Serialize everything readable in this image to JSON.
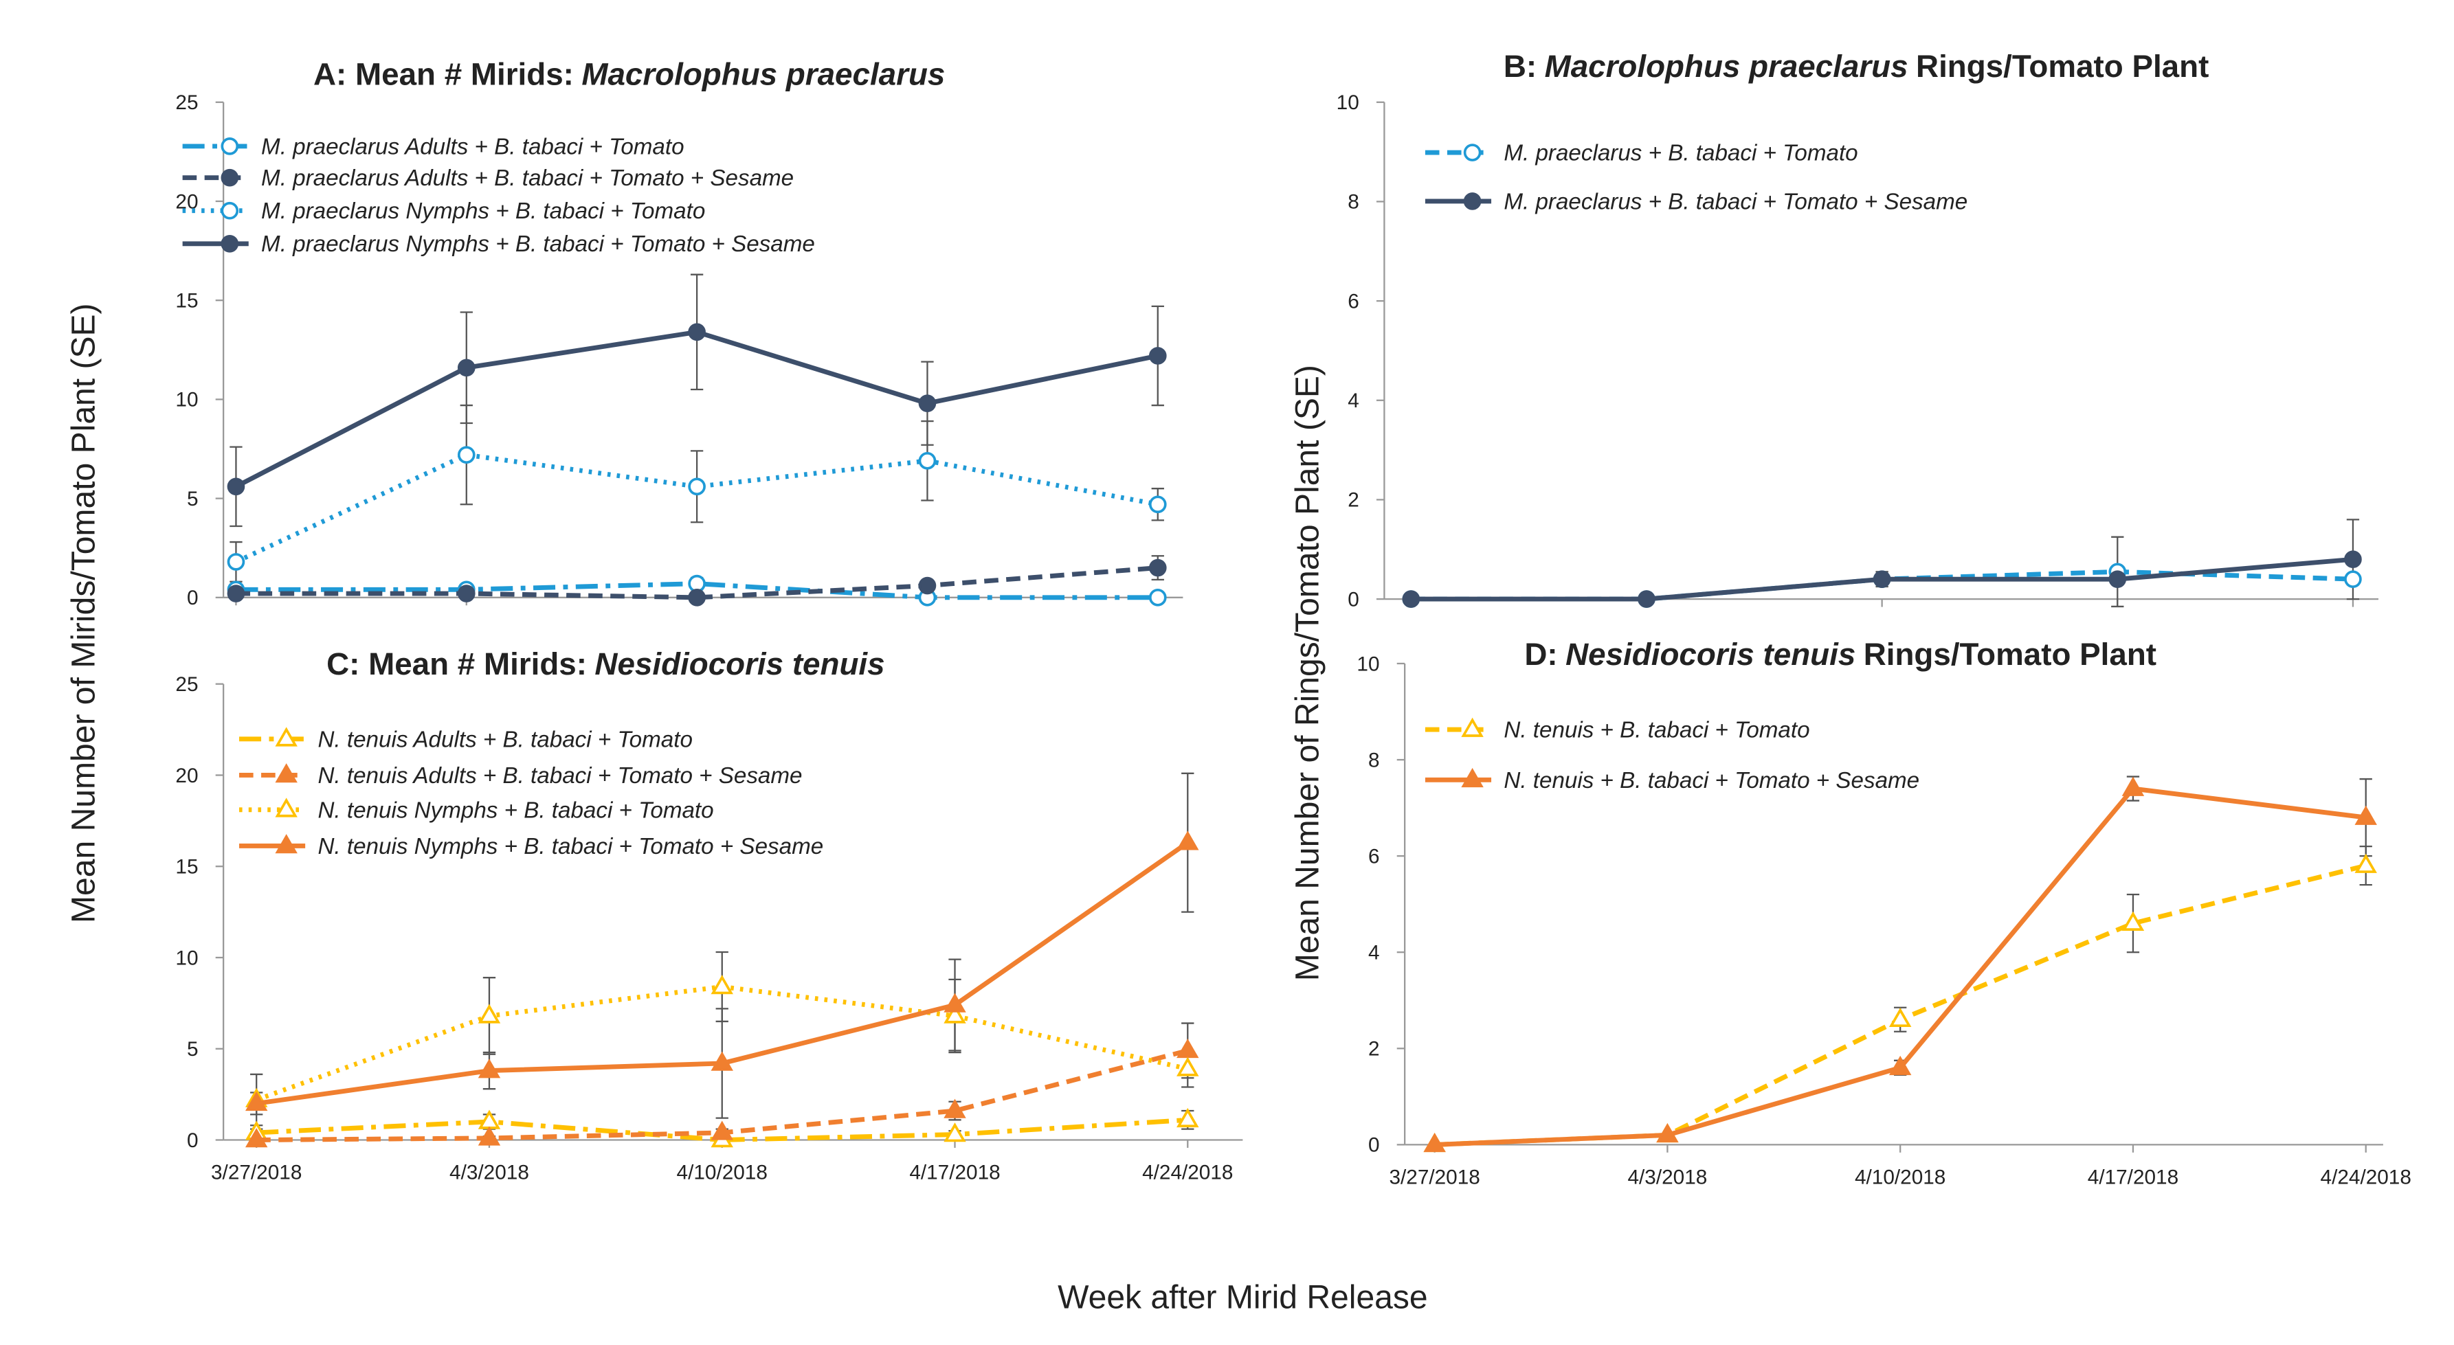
{
  "xlabel": "Week after Mirid Release",
  "ylabels": [
    "Mean Number of Mirids/Tomato Plant (SE)",
    "Mean Number of Rings/Tomato Plant (SE)"
  ],
  "chart_data": [
    {
      "type": "line",
      "title_parts": [
        {
          "text": "A: Mean # Mirids:",
          "italic": false
        },
        {
          "text": "Macrolophus praeclarus",
          "italic": true
        }
      ],
      "categories": [
        null,
        null,
        null,
        null,
        null
      ],
      "ylim": [
        0,
        25
      ],
      "yticks": [
        0,
        5,
        10,
        15,
        20,
        25
      ],
      "series": [
        {
          "name": "M. praeclarus  Adults + B. tabaci + Tomato",
          "color": "#1f9ad6",
          "dash": "dashdot",
          "marker": "circle",
          "filled": false,
          "values": [
            0.4,
            0.4,
            0.7,
            0,
            0
          ],
          "errors": [
            0.1,
            0.1,
            0.3,
            0,
            0
          ]
        },
        {
          "name": "M. praeclarus Adults + B. tabaci + Tomato + Sesame",
          "color": "#3d4f6b",
          "dash": "dash",
          "marker": "circle",
          "filled": true,
          "values": [
            0.2,
            0.2,
            0,
            0.6,
            1.5
          ],
          "errors": [
            0.1,
            0.2,
            0,
            0.2,
            0.6
          ]
        },
        {
          "name": "M. praeclarus Nymphs + B. tabaci + Tomato",
          "color": "#1f9ad6",
          "dash": "dot",
          "marker": "circle",
          "filled": false,
          "values": [
            1.8,
            7.2,
            5.6,
            6.9,
            4.7
          ],
          "errors": [
            1.0,
            2.5,
            1.8,
            2.0,
            0.8
          ]
        },
        {
          "name": "M. praeclarus Nymphs + B. tabaci + Tomato + Sesame",
          "color": "#3d4f6b",
          "dash": "solid",
          "marker": "circle",
          "filled": true,
          "values": [
            5.6,
            11.6,
            13.4,
            9.8,
            12.2
          ],
          "errors": [
            2.0,
            2.8,
            2.9,
            2.1,
            2.5
          ]
        }
      ]
    },
    {
      "type": "line",
      "title_parts": [
        {
          "text": "B:",
          "italic": false
        },
        {
          "text": "Macrolophus praeclarus",
          "italic": true
        },
        {
          "text": "Rings/Tomato Plant",
          "italic": false
        }
      ],
      "categories": [
        null,
        null,
        null,
        null,
        null
      ],
      "ylim": [
        0,
        10
      ],
      "yticks": [
        0,
        2,
        4,
        6,
        8,
        10
      ],
      "series": [
        {
          "name": "M. praeclarus + B. tabaci + Tomato",
          "color": "#1f9ad6",
          "dash": "dash",
          "marker": "circle",
          "filled": false,
          "values": [
            0,
            0,
            0.4,
            0.55,
            0.4
          ],
          "errors": [
            0,
            0,
            0.15,
            0.7,
            0
          ]
        },
        {
          "name": "M. praeclarus + B. tabaci + Tomato + Sesame",
          "color": "#3d4f6b",
          "dash": "solid",
          "marker": "circle",
          "filled": true,
          "values": [
            0,
            0,
            0.4,
            0.4,
            0.8
          ],
          "errors": [
            0,
            0,
            0.1,
            0.1,
            0.8
          ]
        }
      ]
    },
    {
      "type": "line",
      "title_parts": [
        {
          "text": "C: Mean # Mirids:",
          "italic": false
        },
        {
          "text": "Nesidiocoris tenuis",
          "italic": true
        }
      ],
      "categories": [
        "3/27/2018",
        "4/3/2018",
        "4/10/2018",
        "4/17/2018",
        "4/24/2018"
      ],
      "ylim": [
        0,
        25
      ],
      "yticks": [
        0,
        5,
        10,
        15,
        20,
        25
      ],
      "series": [
        {
          "name": "N. tenuis Adults + B. tabaci + Tomato",
          "color": "#ffc000",
          "dash": "dashdot",
          "marker": "triangle",
          "filled": false,
          "values": [
            0.4,
            1.0,
            0,
            0.3,
            1.1
          ],
          "errors": [
            0.2,
            0.4,
            0,
            0.2,
            0.5
          ]
        },
        {
          "name": "N. tenuis Adults + B. tabaci + Tomato + Sesame",
          "color": "#f07f2f",
          "dash": "dash",
          "marker": "triangle",
          "filled": true,
          "values": [
            0,
            0.1,
            0.4,
            1.6,
            4.9
          ],
          "errors": [
            0,
            0.1,
            0.2,
            0.5,
            1.5
          ]
        },
        {
          "name": "N. tenuis Nymphs + B. tabaci + Tomato",
          "color": "#ffc000",
          "dash": "dot",
          "marker": "triangle",
          "filled": false,
          "values": [
            2.2,
            6.8,
            8.4,
            6.8,
            3.9
          ],
          "errors": [
            1.4,
            2.1,
            1.9,
            2.0,
            1.0
          ]
        },
        {
          "name": "N. tenuis Nymphs + B. tabaci + Tomato + Sesame",
          "color": "#f07f2f",
          "dash": "solid",
          "marker": "triangle",
          "filled": true,
          "values": [
            2.0,
            3.8,
            4.2,
            7.4,
            16.3
          ],
          "errors": [
            0.6,
            1.0,
            3.0,
            2.5,
            3.8
          ]
        }
      ]
    },
    {
      "type": "line",
      "title_parts": [
        {
          "text": "D:",
          "italic": false
        },
        {
          "text": "Nesidiocoris tenuis",
          "italic": true
        },
        {
          "text": "Rings/Tomato Plant",
          "italic": false
        }
      ],
      "categories": [
        "3/27/2018",
        "4/3/2018",
        "4/10/2018",
        "4/17/2018",
        "4/24/2018"
      ],
      "ylim": [
        0,
        10
      ],
      "yticks": [
        0,
        2,
        4,
        6,
        8,
        10
      ],
      "series": [
        {
          "name": "N. tenuis  + B. tabaci + Tomato",
          "color": "#ffc000",
          "dash": "dash",
          "marker": "triangle",
          "filled": false,
          "values": [
            0,
            0.2,
            2.6,
            4.6,
            5.8
          ],
          "errors": [
            0,
            0,
            0.25,
            0.6,
            0.4
          ]
        },
        {
          "name": "N. tenuis  + B. tabaci + Tomato + Sesame",
          "color": "#f07f2f",
          "dash": "solid",
          "marker": "triangle",
          "filled": true,
          "values": [
            0,
            0.2,
            1.6,
            7.4,
            6.8
          ],
          "errors": [
            0,
            0,
            0.15,
            0.25,
            0.8
          ]
        }
      ]
    }
  ]
}
